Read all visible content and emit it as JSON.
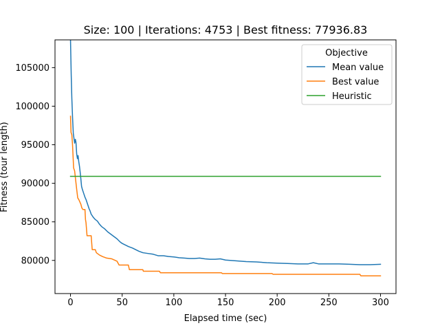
{
  "chart_data": {
    "type": "line",
    "title": "Size: 100 | Iterations: 4753 | Best fitness: 77936.83",
    "xlabel": "Elapsed time (sec)",
    "ylabel": "Fitness (tour length)",
    "xlim": [
      -15,
      315
    ],
    "ylim": [
      75700,
      108600
    ],
    "x_ticks": [
      0,
      50,
      100,
      150,
      200,
      250,
      300
    ],
    "x_tick_labels": [
      "0",
      "50",
      "100",
      "150",
      "200",
      "250",
      "300"
    ],
    "y_ticks": [
      80000,
      85000,
      90000,
      95000,
      100000,
      105000
    ],
    "y_tick_labels": [
      "80000",
      "85000",
      "90000",
      "95000",
      "100000",
      "105000"
    ],
    "grid": false,
    "legend": {
      "title": "Objective",
      "placement": "top-right"
    },
    "series": [
      {
        "name": "Mean value",
        "color": "#1f77b4",
        "points": [
          [
            0,
            108600
          ],
          [
            0.7,
            104000
          ],
          [
            1.3,
            101000
          ],
          [
            2,
            98500
          ],
          [
            2.7,
            96500
          ],
          [
            3.3,
            95900
          ],
          [
            4,
            95200
          ],
          [
            4.7,
            95700
          ],
          [
            5.3,
            95300
          ],
          [
            6,
            93800
          ],
          [
            6.7,
            93200
          ],
          [
            7.3,
            93600
          ],
          [
            8,
            92800
          ],
          [
            8.7,
            92200
          ],
          [
            9.3,
            91500
          ],
          [
            10,
            90600
          ],
          [
            10.7,
            89600
          ],
          [
            11.3,
            89300
          ],
          [
            12,
            89000
          ],
          [
            13,
            88600
          ],
          [
            14,
            88200
          ],
          [
            15,
            87900
          ],
          [
            16,
            87500
          ],
          [
            17,
            87100
          ],
          [
            18,
            86700
          ],
          [
            19,
            86400
          ],
          [
            20,
            86000
          ],
          [
            22,
            85600
          ],
          [
            24,
            85300
          ],
          [
            26,
            85100
          ],
          [
            28,
            84700
          ],
          [
            30,
            84400
          ],
          [
            33,
            84100
          ],
          [
            36,
            83700
          ],
          [
            39,
            83400
          ],
          [
            42,
            83100
          ],
          [
            45,
            82800
          ],
          [
            48,
            82400
          ],
          [
            50,
            82200
          ],
          [
            53,
            82000
          ],
          [
            56,
            81800
          ],
          [
            60,
            81600
          ],
          [
            63,
            81400
          ],
          [
            66,
            81200
          ],
          [
            70,
            81000
          ],
          [
            75,
            80900
          ],
          [
            80,
            80800
          ],
          [
            85,
            80600
          ],
          [
            90,
            80600
          ],
          [
            95,
            80500
          ],
          [
            100,
            80450
          ],
          [
            105,
            80350
          ],
          [
            110,
            80300
          ],
          [
            115,
            80250
          ],
          [
            120,
            80250
          ],
          [
            125,
            80300
          ],
          [
            130,
            80200
          ],
          [
            135,
            80150
          ],
          [
            140,
            80150
          ],
          [
            145,
            80200
          ],
          [
            150,
            80050
          ],
          [
            160,
            79950
          ],
          [
            170,
            79850
          ],
          [
            180,
            79800
          ],
          [
            190,
            79700
          ],
          [
            200,
            79650
          ],
          [
            210,
            79600
          ],
          [
            220,
            79550
          ],
          [
            230,
            79550
          ],
          [
            235,
            79700
          ],
          [
            240,
            79550
          ],
          [
            250,
            79550
          ],
          [
            260,
            79550
          ],
          [
            270,
            79500
          ],
          [
            280,
            79450
          ],
          [
            290,
            79450
          ],
          [
            300,
            79500
          ]
        ]
      },
      {
        "name": "Best value",
        "color": "#ff7f0e",
        "points": [
          [
            0,
            98700
          ],
          [
            0.5,
            96600
          ],
          [
            1.3,
            96300
          ],
          [
            2,
            94900
          ],
          [
            3,
            92000
          ],
          [
            4,
            91600
          ],
          [
            5,
            90400
          ],
          [
            6,
            89200
          ],
          [
            7,
            88100
          ],
          [
            8,
            87900
          ],
          [
            9,
            87600
          ],
          [
            10,
            87300
          ],
          [
            11,
            86800
          ],
          [
            12,
            86600
          ],
          [
            14,
            86600
          ],
          [
            14.5,
            85300
          ],
          [
            15,
            84900
          ],
          [
            16,
            83200
          ],
          [
            20,
            83200
          ],
          [
            21,
            81400
          ],
          [
            24,
            81400
          ],
          [
            25,
            81000
          ],
          [
            28,
            80700
          ],
          [
            31,
            80500
          ],
          [
            35,
            80300
          ],
          [
            40,
            80200
          ],
          [
            45,
            79900
          ],
          [
            47,
            79400
          ],
          [
            56,
            79400
          ],
          [
            57,
            78800
          ],
          [
            70,
            78800
          ],
          [
            70.5,
            78600
          ],
          [
            86,
            78600
          ],
          [
            87,
            78400
          ],
          [
            146,
            78400
          ],
          [
            147,
            78300
          ],
          [
            195,
            78300
          ],
          [
            196,
            78200
          ],
          [
            280,
            78200
          ],
          [
            281,
            78000
          ],
          [
            300,
            78000
          ]
        ]
      },
      {
        "name": "Heuristic",
        "color": "#2ca02c",
        "points": [
          [
            0,
            90900
          ],
          [
            300,
            90900
          ]
        ]
      }
    ]
  }
}
